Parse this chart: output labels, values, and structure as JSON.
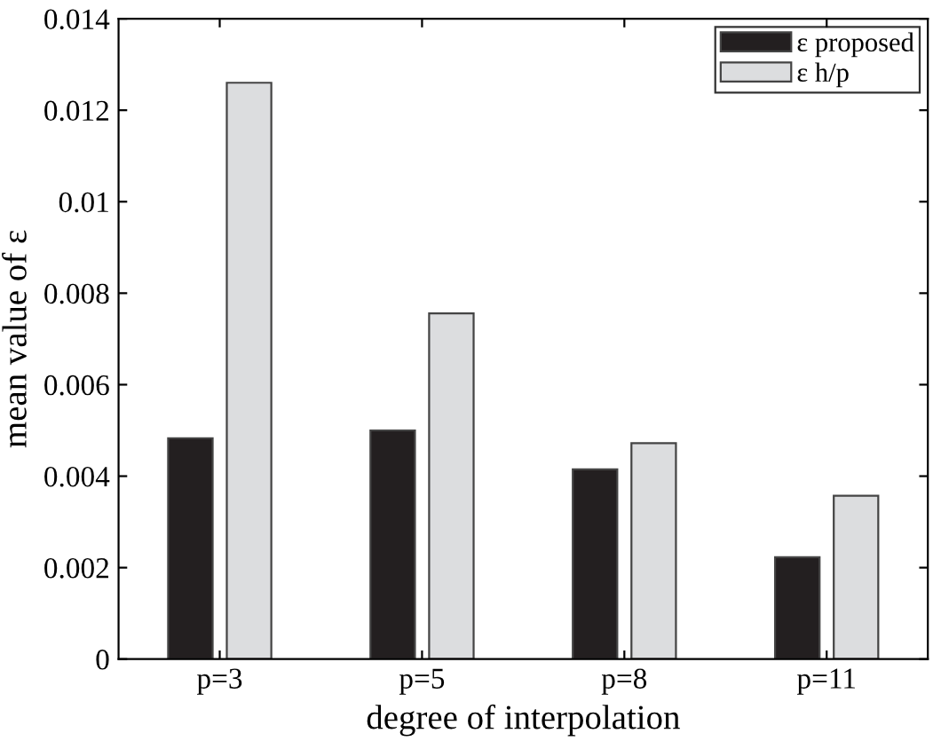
{
  "chart_data": {
    "type": "bar",
    "xlabel": "degree of interpolation",
    "ylabel": "mean value of ε",
    "categories": [
      "p=3",
      "p=5",
      "p=8",
      "p=11"
    ],
    "series": [
      {
        "name": "ε proposed",
        "color": "#231f20",
        "values": [
          0.00483,
          0.005,
          0.00415,
          0.00223
        ]
      },
      {
        "name": "ε h/p",
        "color": "#dcdddf",
        "values": [
          0.0126,
          0.00756,
          0.00472,
          0.00357
        ]
      }
    ],
    "ylim": [
      0,
      0.014
    ],
    "yticks": [
      {
        "value": 0,
        "label": "0"
      },
      {
        "value": 0.002,
        "label": "0.002"
      },
      {
        "value": 0.004,
        "label": "0.004"
      },
      {
        "value": 0.006,
        "label": "0.006"
      },
      {
        "value": 0.008,
        "label": "0.008"
      },
      {
        "value": 0.01,
        "label": "0.01"
      },
      {
        "value": 0.012,
        "label": "0.012"
      },
      {
        "value": 0.014,
        "label": "0.014"
      }
    ],
    "grid": false,
    "legend": "top right"
  }
}
